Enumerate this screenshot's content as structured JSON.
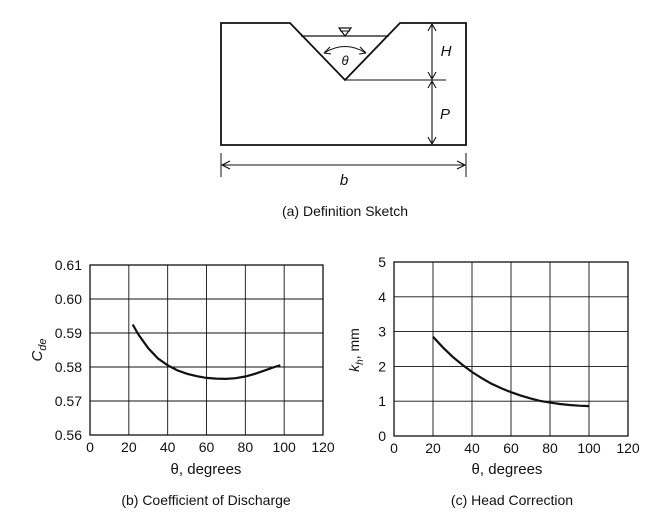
{
  "sketch": {
    "caption": "(a) Definition Sketch",
    "label_theta": "θ",
    "label_H": "H",
    "label_P": "P",
    "label_b": "b"
  },
  "chart_data": [
    {
      "type": "line",
      "caption": "(b) Coefficient of Discharge",
      "xlabel": "θ, degrees",
      "ylabel_main": "C",
      "ylabel_sub": "de",
      "xlim": [
        0,
        120
      ],
      "ylim": [
        0.56,
        0.61
      ],
      "xticks": [
        "0",
        "20",
        "40",
        "60",
        "80",
        "100",
        "120"
      ],
      "yticks": [
        "0.56",
        "0.57",
        "0.58",
        "0.59",
        "0.60",
        "0.61"
      ],
      "grid": true,
      "x": [
        22,
        25,
        30,
        35,
        40,
        45,
        50,
        55,
        60,
        65,
        70,
        75,
        80,
        85,
        90,
        95,
        98
      ],
      "y": [
        0.5925,
        0.5895,
        0.5855,
        0.5825,
        0.5805,
        0.579,
        0.578,
        0.5773,
        0.5768,
        0.5766,
        0.5765,
        0.5767,
        0.5772,
        0.578,
        0.579,
        0.58,
        0.5805
      ]
    },
    {
      "type": "line",
      "caption": "(c) Head Correction",
      "xlabel": "θ, degrees",
      "ylabel_main": "k",
      "ylabel_sub": "h",
      "ylabel_unit": ", mm",
      "xlim": [
        0,
        120
      ],
      "ylim": [
        0,
        5
      ],
      "xticks": [
        "0",
        "20",
        "40",
        "60",
        "80",
        "100",
        "120"
      ],
      "yticks": [
        "0",
        "1",
        "2",
        "3",
        "4",
        "5"
      ],
      "grid": true,
      "x": [
        20,
        25,
        30,
        35,
        40,
        45,
        50,
        55,
        60,
        65,
        70,
        75,
        80,
        85,
        90,
        95,
        100
      ],
      "y": [
        2.85,
        2.55,
        2.28,
        2.05,
        1.84,
        1.66,
        1.5,
        1.37,
        1.26,
        1.16,
        1.08,
        1.01,
        0.96,
        0.92,
        0.89,
        0.87,
        0.86
      ]
    }
  ]
}
